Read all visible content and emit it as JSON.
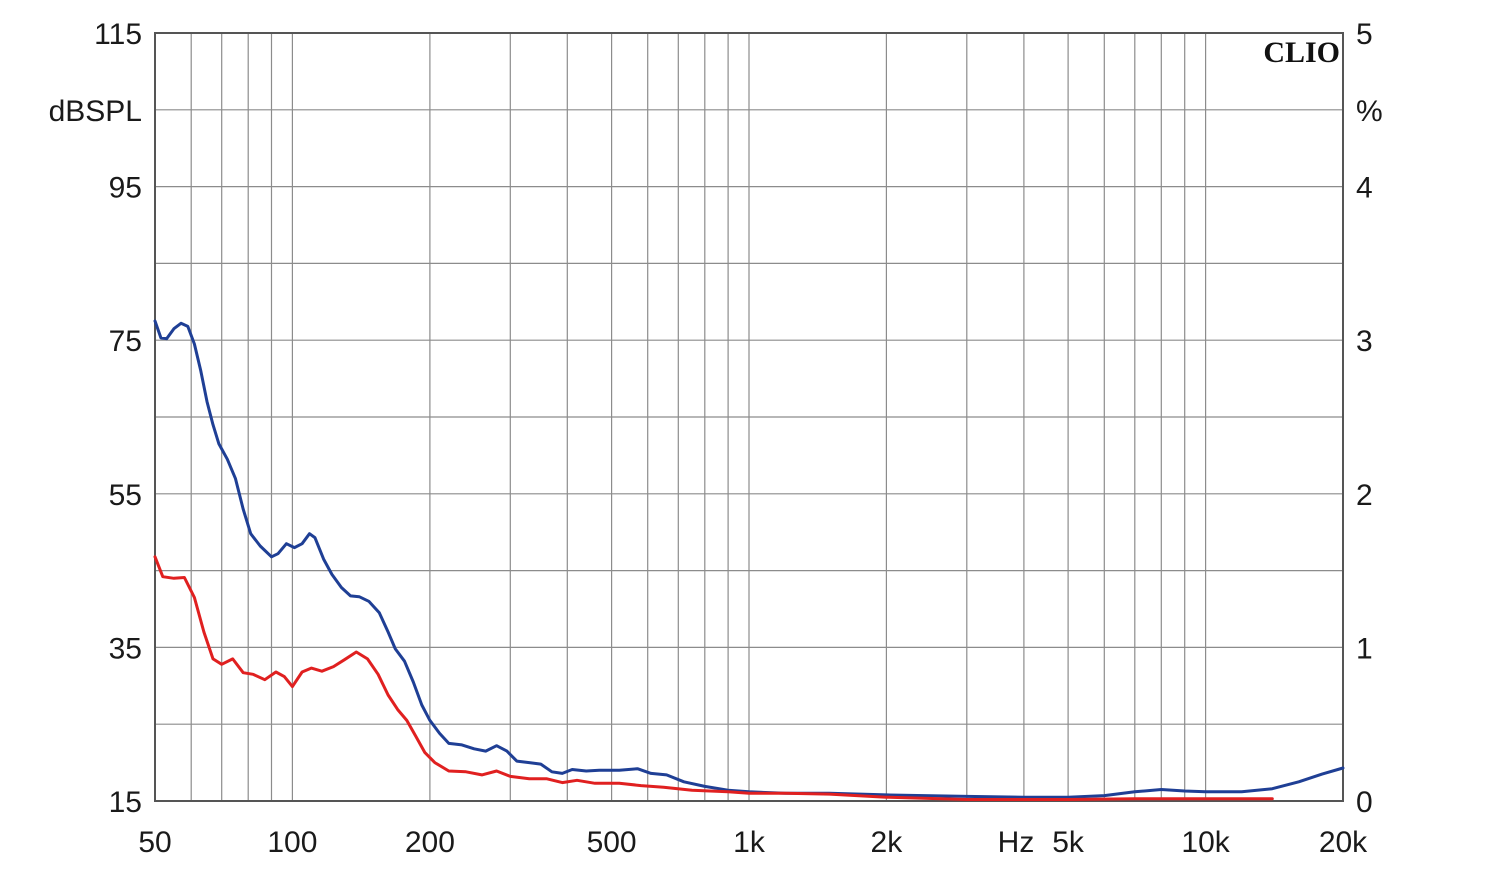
{
  "chart_data": {
    "type": "line",
    "brand": "CLIO",
    "x_scale": "log",
    "xlim": [
      50,
      20000
    ],
    "x_unit_label": "Hz",
    "x_ticks": [
      {
        "value": 50,
        "label": "50"
      },
      {
        "value": 100,
        "label": "100"
      },
      {
        "value": 200,
        "label": "200"
      },
      {
        "value": 500,
        "label": "500"
      },
      {
        "value": 1000,
        "label": "1k"
      },
      {
        "value": 2000,
        "label": "2k"
      },
      {
        "value": 5000,
        "label": "5k"
      },
      {
        "value": 10000,
        "label": "10k"
      },
      {
        "value": 20000,
        "label": "20k"
      }
    ],
    "y_left": {
      "unit_label": "dBSPL",
      "ylim": [
        15,
        115
      ],
      "ticks": [
        "15",
        "35",
        "55",
        "75",
        "95",
        "115"
      ]
    },
    "y_right": {
      "unit_label": "%",
      "ylim": [
        0,
        5
      ],
      "ticks": [
        "0",
        "1",
        "2",
        "3",
        "4",
        "5"
      ]
    },
    "grid": true,
    "colors": {
      "blue_series": "#1f3f95",
      "red_series": "#e02020",
      "grid": "#8c8c8c",
      "frame": "#555555"
    },
    "series": [
      {
        "color_key": "blue_series",
        "axis": "left",
        "points": [
          [
            50,
            77.5
          ],
          [
            51.5,
            75.3
          ],
          [
            53,
            75.2
          ],
          [
            55,
            76.5
          ],
          [
            57,
            77.2
          ],
          [
            59,
            76.8
          ],
          [
            61,
            74.5
          ],
          [
            63,
            71
          ],
          [
            65,
            67
          ],
          [
            67,
            64
          ],
          [
            69,
            61.5
          ],
          [
            72,
            59.5
          ],
          [
            75,
            57
          ],
          [
            78,
            53
          ],
          [
            81,
            49.8
          ],
          [
            85,
            48.2
          ],
          [
            90,
            46.8
          ],
          [
            93,
            47.2
          ],
          [
            97,
            48.5
          ],
          [
            101,
            48
          ],
          [
            105,
            48.5
          ],
          [
            109,
            49.8
          ],
          [
            112,
            49.3
          ],
          [
            117,
            46.5
          ],
          [
            122,
            44.5
          ],
          [
            128,
            42.8
          ],
          [
            134,
            41.7
          ],
          [
            140,
            41.6
          ],
          [
            147,
            41
          ],
          [
            155,
            39.5
          ],
          [
            162,
            37
          ],
          [
            168,
            34.8
          ],
          [
            176,
            33.2
          ],
          [
            184,
            30.5
          ],
          [
            192,
            27.5
          ],
          [
            200,
            25.5
          ],
          [
            210,
            23.8
          ],
          [
            220,
            22.5
          ],
          [
            235,
            22.3
          ],
          [
            250,
            21.8
          ],
          [
            265,
            21.5
          ],
          [
            280,
            22.2
          ],
          [
            295,
            21.5
          ],
          [
            310,
            20.2
          ],
          [
            330,
            20
          ],
          [
            350,
            19.8
          ],
          [
            370,
            18.8
          ],
          [
            390,
            18.6
          ],
          [
            410,
            19.1
          ],
          [
            440,
            18.9
          ],
          [
            470,
            19
          ],
          [
            520,
            19
          ],
          [
            570,
            19.2
          ],
          [
            610,
            18.6
          ],
          [
            660,
            18.4
          ],
          [
            720,
            17.5
          ],
          [
            800,
            16.9
          ],
          [
            900,
            16.4
          ],
          [
            1000,
            16.2
          ],
          [
            1200,
            16
          ],
          [
            1500,
            16
          ],
          [
            2000,
            15.8
          ],
          [
            3000,
            15.6
          ],
          [
            4000,
            15.5
          ],
          [
            5000,
            15.5
          ],
          [
            6000,
            15.7
          ],
          [
            7000,
            16.2
          ],
          [
            8000,
            16.5
          ],
          [
            9000,
            16.3
          ],
          [
            10000,
            16.2
          ],
          [
            12000,
            16.2
          ],
          [
            14000,
            16.6
          ],
          [
            16000,
            17.5
          ],
          [
            18000,
            18.5
          ],
          [
            20000,
            19.3
          ]
        ]
      },
      {
        "color_key": "red_series",
        "axis": "left",
        "points": [
          [
            50,
            46.8
          ],
          [
            52,
            44.2
          ],
          [
            55,
            44
          ],
          [
            58,
            44.1
          ],
          [
            61,
            41.5
          ],
          [
            64,
            37
          ],
          [
            67,
            33.5
          ],
          [
            70,
            32.8
          ],
          [
            74,
            33.5
          ],
          [
            78,
            31.7
          ],
          [
            82,
            31.5
          ],
          [
            87,
            30.8
          ],
          [
            92,
            31.8
          ],
          [
            96,
            31.2
          ],
          [
            100,
            29.9
          ],
          [
            105,
            31.8
          ],
          [
            110,
            32.3
          ],
          [
            116,
            31.9
          ],
          [
            123,
            32.5
          ],
          [
            130,
            33.4
          ],
          [
            138,
            34.4
          ],
          [
            146,
            33.5
          ],
          [
            154,
            31.5
          ],
          [
            162,
            28.8
          ],
          [
            170,
            26.9
          ],
          [
            178,
            25.5
          ],
          [
            186,
            23.5
          ],
          [
            195,
            21.3
          ],
          [
            205,
            20
          ],
          [
            220,
            18.9
          ],
          [
            240,
            18.8
          ],
          [
            260,
            18.4
          ],
          [
            280,
            18.9
          ],
          [
            300,
            18.2
          ],
          [
            330,
            17.9
          ],
          [
            360,
            17.9
          ],
          [
            390,
            17.4
          ],
          [
            420,
            17.7
          ],
          [
            460,
            17.3
          ],
          [
            520,
            17.3
          ],
          [
            580,
            17
          ],
          [
            650,
            16.8
          ],
          [
            750,
            16.4
          ],
          [
            900,
            16.2
          ],
          [
            1000,
            16
          ],
          [
            1200,
            16
          ],
          [
            1500,
            15.9
          ],
          [
            2000,
            15.5
          ],
          [
            3000,
            15.2
          ],
          [
            5000,
            15.2
          ],
          [
            7000,
            15.3
          ],
          [
            10000,
            15.3
          ],
          [
            14000,
            15.3
          ]
        ]
      }
    ]
  }
}
